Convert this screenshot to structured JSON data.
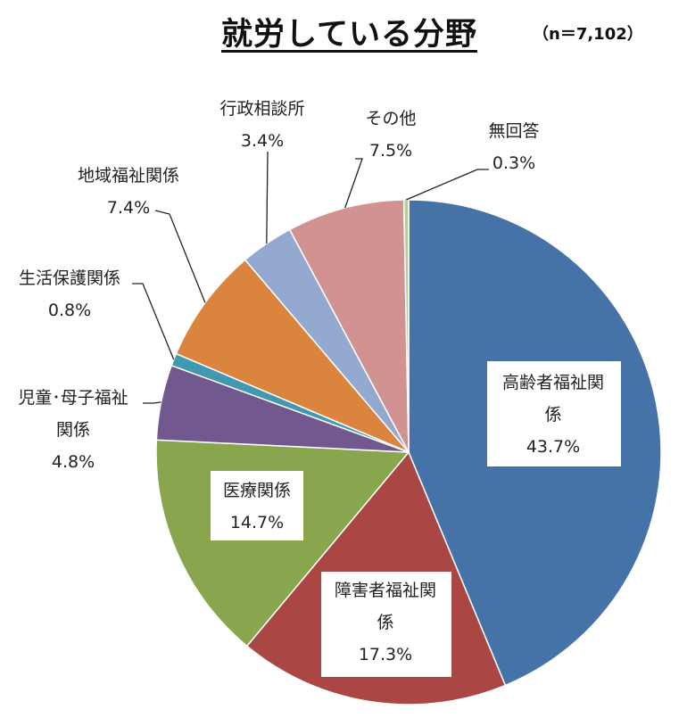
{
  "title": "就労している分野",
  "n_note": "（n＝7,102）",
  "chart_data": {
    "type": "pie",
    "title": "就労している分野",
    "start_angle_deg": 0,
    "direction": "clockwise",
    "slices": [
      {
        "name": "高齢者福祉関係",
        "lines": [
          "高齢者福祉関",
          "係",
          "43.7%"
        ],
        "value": 43.7,
        "color": "#4572A7"
      },
      {
        "name": "障害者福祉関係",
        "lines": [
          "障害者福祉関",
          "係",
          "17.3%"
        ],
        "value": 17.3,
        "color": "#AA4643"
      },
      {
        "name": "医療関係",
        "lines": [
          "医療関係",
          "14.7%"
        ],
        "value": 14.7,
        "color": "#89A54E"
      },
      {
        "name": "児童・母子福祉関係",
        "lines": [
          "児童･母子福祉",
          "関係",
          "4.8%"
        ],
        "value": 4.8,
        "color": "#71588F"
      },
      {
        "name": "生活保護関係",
        "lines": [
          "生活保護関係",
          "0.8%"
        ],
        "value": 0.8,
        "color": "#4198AF"
      },
      {
        "name": "地域福祉関係",
        "lines": [
          "地域福祉関係",
          "7.4%"
        ],
        "value": 7.4,
        "color": "#DB843D"
      },
      {
        "name": "行政相談所",
        "lines": [
          "行政相談所",
          "3.4%"
        ],
        "value": 3.4,
        "color": "#93A9CF"
      },
      {
        "name": "その他",
        "lines": [
          "その他",
          "7.5%"
        ],
        "value": 7.5,
        "color": "#D19392"
      },
      {
        "name": "無回答",
        "lines": [
          "無回答",
          "0.3%"
        ],
        "value": 0.3,
        "color": "#B9CD96"
      }
    ]
  }
}
